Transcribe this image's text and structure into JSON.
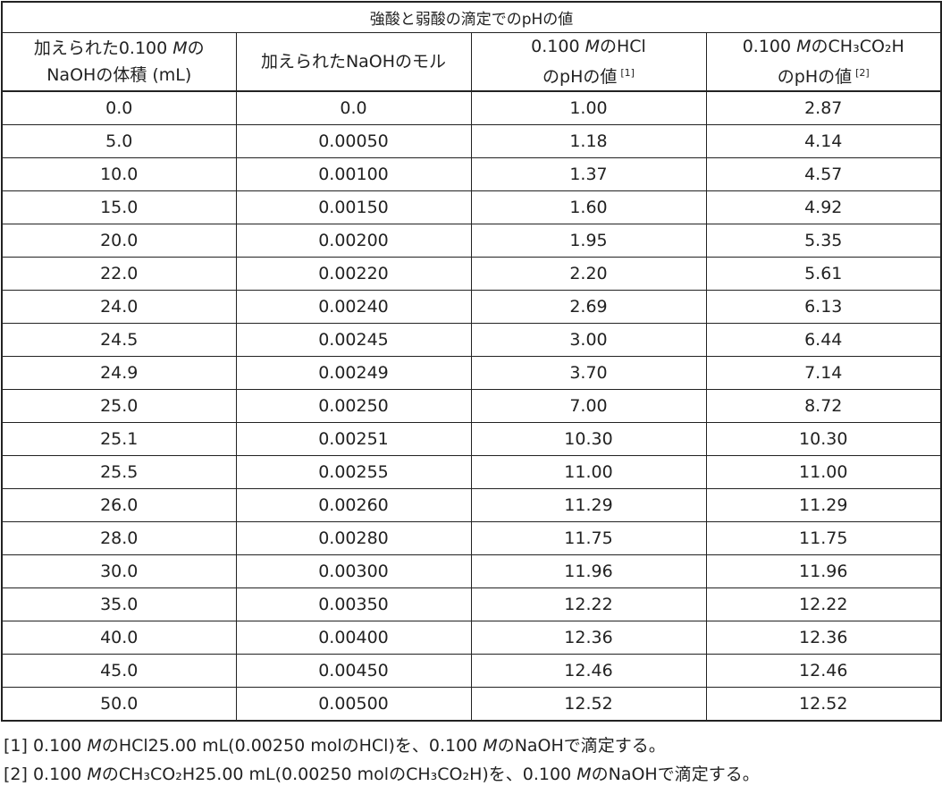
{
  "table": {
    "caption": "強酸と弱酸の滴定でのpHの値",
    "headers": {
      "col1": {
        "line1_pre": "加えられた0.100 ",
        "line1_unit": "M",
        "line1_post": "の",
        "line2": "NaOHの体積 (mL)"
      },
      "col2": {
        "line1": "加えられたNaOHのモル"
      },
      "col3": {
        "line1_pre": "0.100 ",
        "line1_unit": "M",
        "line1_post": "のHCl",
        "line2": "のpHの値",
        "ref": "[1]"
      },
      "col4": {
        "line1_pre": "0.100 ",
        "line1_unit": "M",
        "line1_post": "のCH₃CO₂H",
        "line2": "のpHの値",
        "ref": "[2]"
      }
    },
    "rows": [
      [
        "0.0",
        "0.0",
        "1.00",
        "2.87"
      ],
      [
        "5.0",
        "0.00050",
        "1.18",
        "4.14"
      ],
      [
        "10.0",
        "0.00100",
        "1.37",
        "4.57"
      ],
      [
        "15.0",
        "0.00150",
        "1.60",
        "4.92"
      ],
      [
        "20.0",
        "0.00200",
        "1.95",
        "5.35"
      ],
      [
        "22.0",
        "0.00220",
        "2.20",
        "5.61"
      ],
      [
        "24.0",
        "0.00240",
        "2.69",
        "6.13"
      ],
      [
        "24.5",
        "0.00245",
        "3.00",
        "6.44"
      ],
      [
        "24.9",
        "0.00249",
        "3.70",
        "7.14"
      ],
      [
        "25.0",
        "0.00250",
        "7.00",
        "8.72"
      ],
      [
        "25.1",
        "0.00251",
        "10.30",
        "10.30"
      ],
      [
        "25.5",
        "0.00255",
        "11.00",
        "11.00"
      ],
      [
        "26.0",
        "0.00260",
        "11.29",
        "11.29"
      ],
      [
        "28.0",
        "0.00280",
        "11.75",
        "11.75"
      ],
      [
        "30.0",
        "0.00300",
        "11.96",
        "11.96"
      ],
      [
        "35.0",
        "0.00350",
        "12.22",
        "12.22"
      ],
      [
        "40.0",
        "0.00400",
        "12.36",
        "12.36"
      ],
      [
        "45.0",
        "0.00450",
        "12.46",
        "12.46"
      ],
      [
        "50.0",
        "0.00500",
        "12.52",
        "12.52"
      ]
    ]
  },
  "footnotes": [
    {
      "ref": "[1]",
      "part1": " 0.100 ",
      "unit1": "M",
      "part2": "のHCl25.00 mL(0.00250 molのHCl)を、0.100 ",
      "unit2": "M",
      "part3": "のNaOHで滴定する。"
    },
    {
      "ref": "[2]",
      "part1": " 0.100 ",
      "unit1": "M",
      "part2": "のCH₃CO₂H25.00 mL(0.00250 molのCH₃CO₂H)を、0.100 ",
      "unit2": "M",
      "part3": "のNaOHで滴定する。"
    }
  ]
}
